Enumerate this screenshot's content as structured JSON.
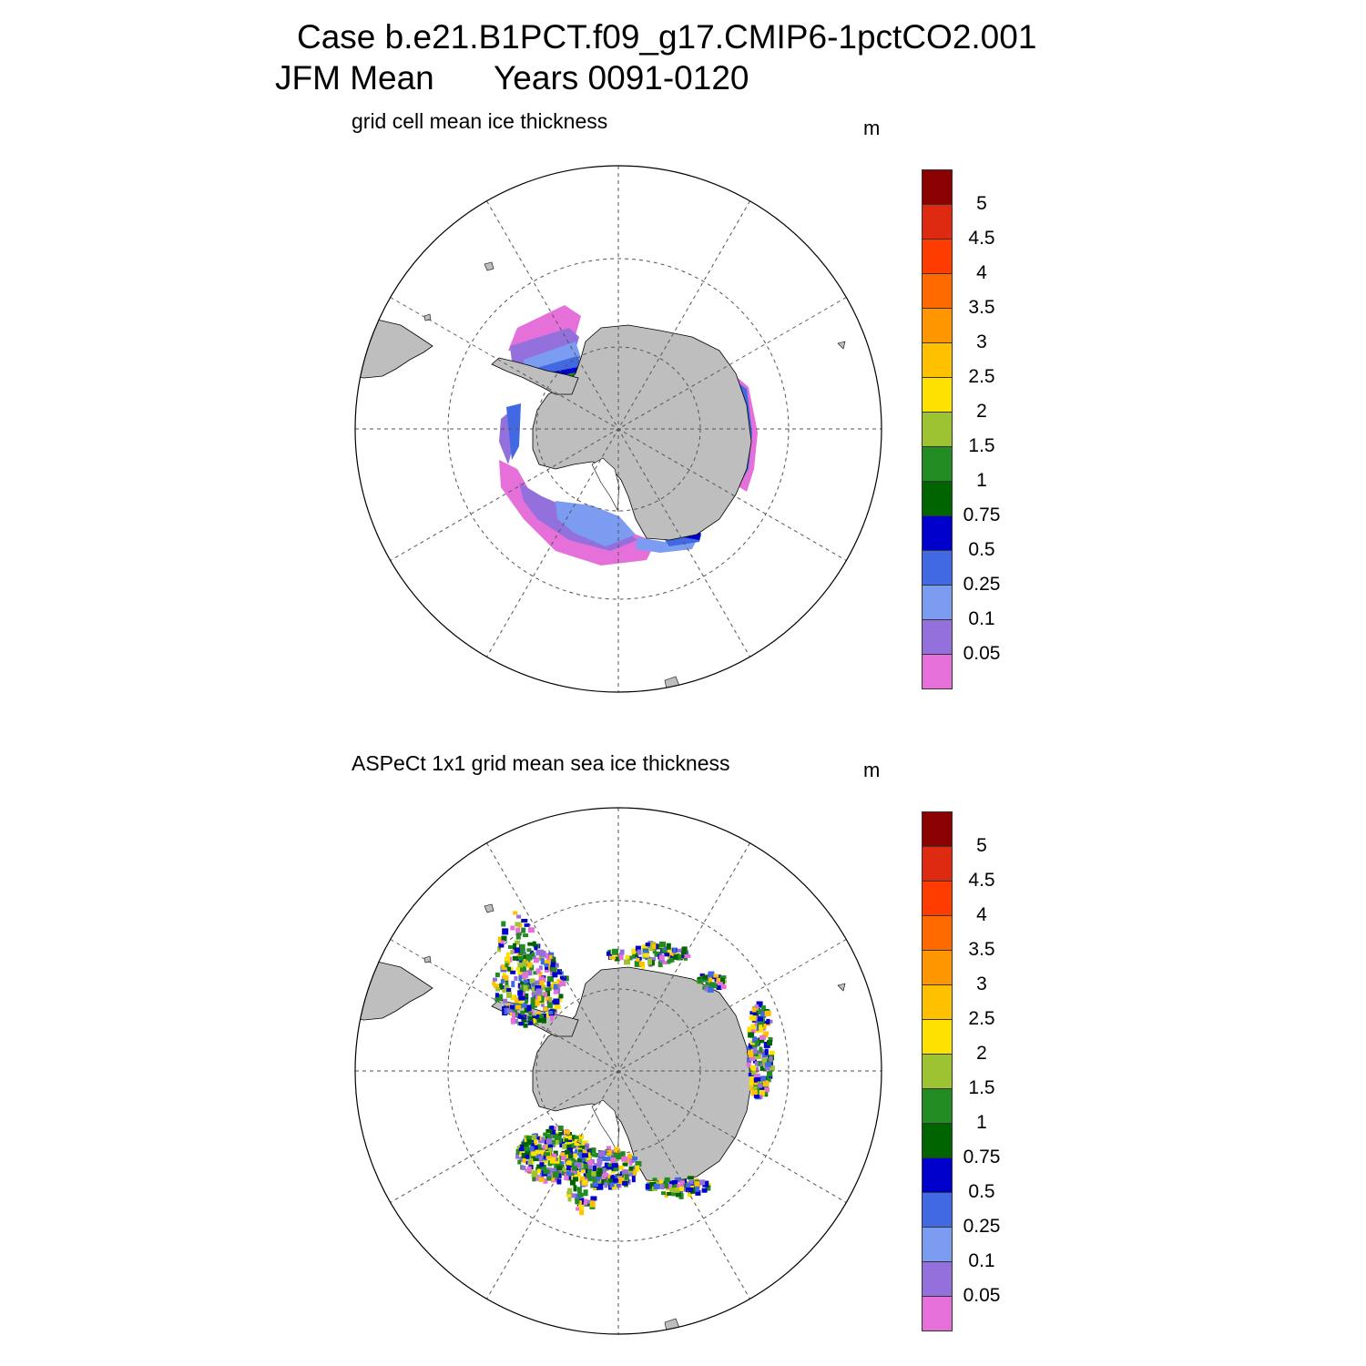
{
  "header": {
    "line1": "Case b.e21.B1PCT.f09_g17.CMIP6-1pctCO2.001",
    "line2_left": "JFM Mean",
    "line2_right": "Years 0091-0120"
  },
  "colors": {
    "land": "#bebebe",
    "frame": "#000000",
    "grid": "#555555"
  },
  "colorbar": {
    "labels": [
      "5",
      "4.5",
      "4",
      "3.5",
      "3",
      "2.5",
      "2",
      "1.5",
      "1",
      "0.75",
      "0.5",
      "0.25",
      "0.1",
      "0.05"
    ],
    "colors_top_to_bottom": [
      "#8b0000",
      "#dd2a10",
      "#ff3c00",
      "#ff6a00",
      "#ff9600",
      "#ffc000",
      "#ffe100",
      "#9dc332",
      "#228b22",
      "#006400",
      "#0000cd",
      "#4169e1",
      "#7b9cf0",
      "#9370db",
      "#e670da"
    ]
  },
  "panels": [
    {
      "id": "model",
      "label": "grid cell mean ice thickness",
      "unit": "m"
    },
    {
      "id": "obs",
      "label": "ASPeCt 1x1 grid mean sea ice thickness",
      "unit": "m"
    }
  ]
}
